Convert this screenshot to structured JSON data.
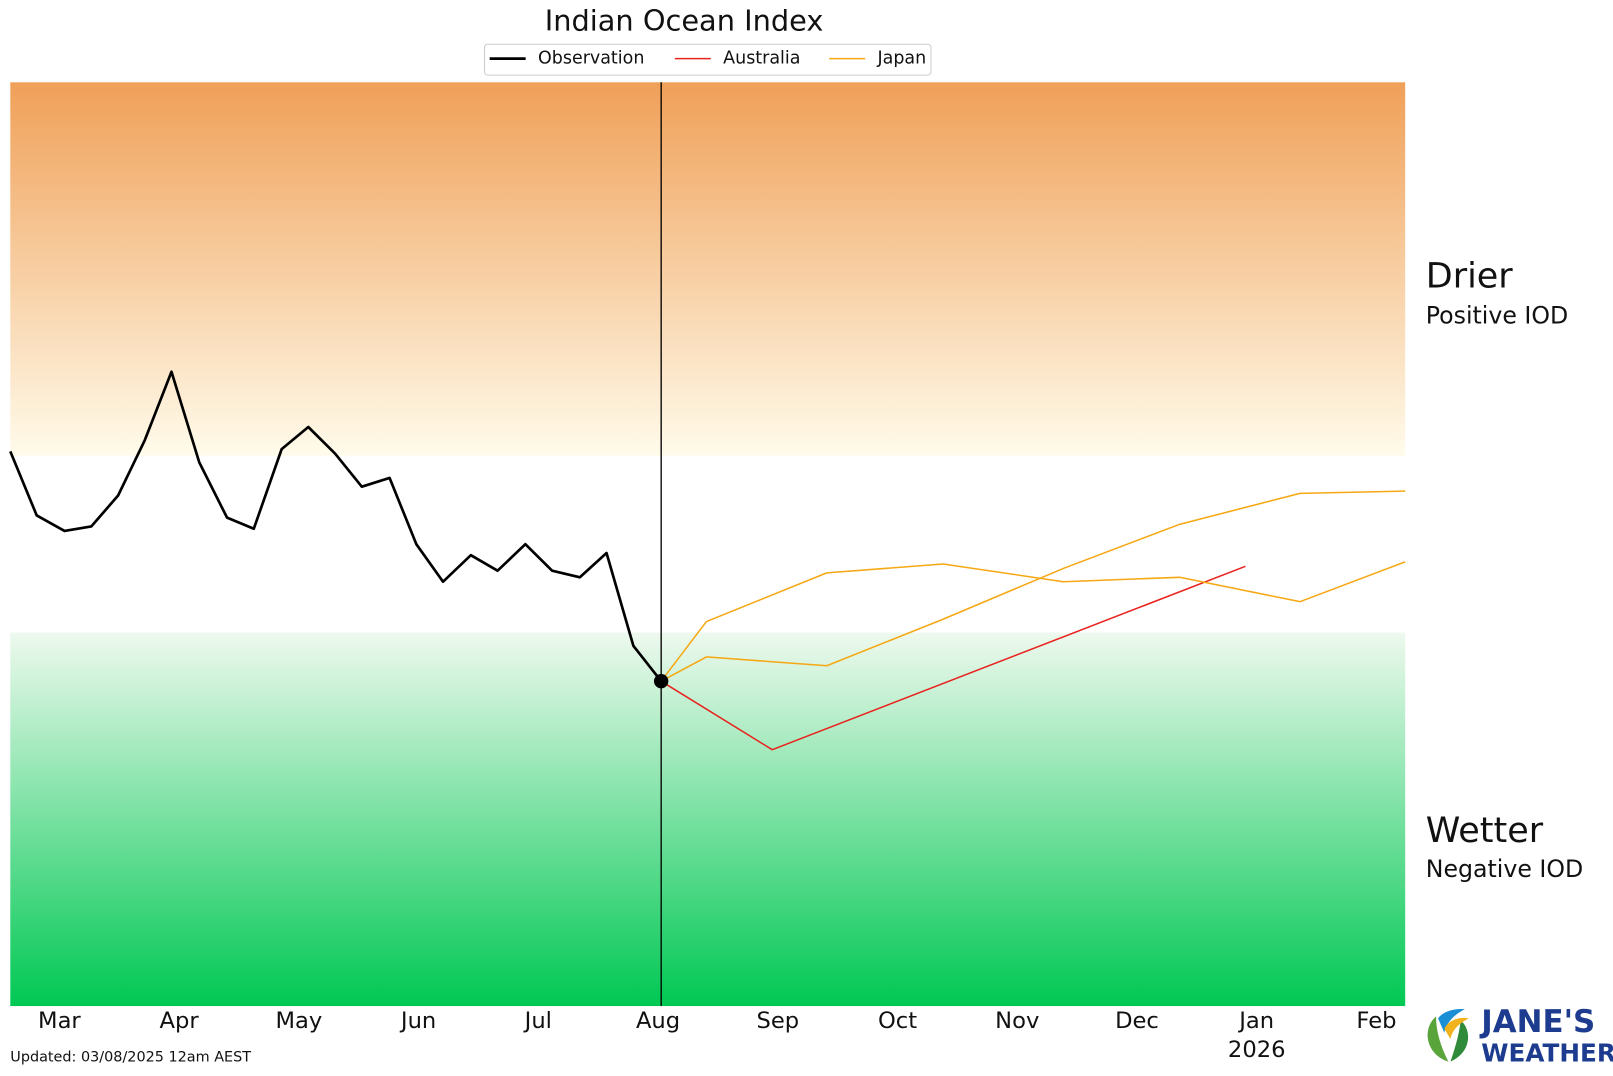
{
  "chart_data": {
    "type": "line",
    "title": "Indian Ocean Index",
    "xlim": [
      -0.41,
      11.24
    ],
    "ylim": [
      -2.09,
      2.09
    ],
    "shading_thresholds": [
      -0.4,
      0.4
    ],
    "xticks": [
      {
        "value": 0,
        "label": "Mar"
      },
      {
        "value": 1,
        "label": "Apr"
      },
      {
        "value": 2,
        "label": "May"
      },
      {
        "value": 3,
        "label": "Jun"
      },
      {
        "value": 4,
        "label": "Jul"
      },
      {
        "value": 5,
        "label": "Aug"
      },
      {
        "value": 6,
        "label": "Sep"
      },
      {
        "value": 7,
        "label": "Oct"
      },
      {
        "value": 8,
        "label": "Nov"
      },
      {
        "value": 9,
        "label": "Dec"
      },
      {
        "value": 10,
        "label": "Jan",
        "sublabel": "2026"
      },
      {
        "value": 11,
        "label": "Feb"
      }
    ],
    "series": [
      {
        "name": "Observation",
        "color": "#000000",
        "x": [
          -0.41,
          -0.189,
          0.043,
          0.266,
          0.49,
          0.713,
          0.936,
          1.168,
          1.4,
          1.624,
          1.856,
          2.079,
          2.302,
          2.526,
          2.758,
          2.981,
          3.204,
          3.436,
          3.66,
          3.892,
          4.115,
          4.347,
          4.57,
          4.794,
          5.026
        ],
        "values": [
          0.42,
          0.13,
          0.06,
          0.08,
          0.22,
          0.47,
          0.78,
          0.37,
          0.12,
          0.07,
          0.43,
          0.53,
          0.41,
          0.26,
          0.3,
          0.0,
          -0.17,
          -0.05,
          -0.12,
          0.0,
          -0.12,
          -0.15,
          -0.04,
          -0.46,
          -0.62
        ]
      },
      {
        "name": "Australia",
        "color": "#e8231e",
        "x": [
          5.026,
          5.954,
          9.906
        ],
        "values": [
          -0.62,
          -0.93,
          -0.1
        ]
      },
      {
        "name": "Japan",
        "color": "#f5a813",
        "x": [
          5.026,
          5.404,
          6.409,
          7.38,
          8.385,
          9.356,
          10.361,
          11.24
        ],
        "values": [
          -0.62,
          -0.35,
          -0.13,
          -0.09,
          -0.17,
          -0.15,
          -0.26,
          -0.08
        ]
      },
      {
        "color": "#f5a813",
        "x": [
          5.026,
          5.404,
          6.409,
          7.38,
          8.385,
          9.356,
          10.361,
          11.24
        ],
        "values": [
          -0.62,
          -0.51,
          -0.55,
          -0.34,
          -0.11,
          0.09,
          0.23,
          0.24
        ]
      }
    ],
    "upper_label": "Drier",
    "upper_sublabel": "Positive IOD",
    "lower_label": "Wetter",
    "lower_sublabel": "Negative IOD",
    "footnote": "Updated: 03/08/2025 12am AEST",
    "brand": [
      "JANE'S",
      "WEATHER"
    ]
  }
}
